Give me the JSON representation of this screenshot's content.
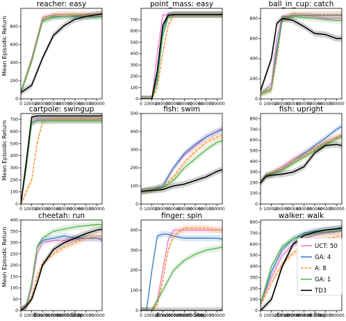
{
  "figure": {
    "ylabel": "Mean Episodic Return",
    "xlabel": "Environment Step",
    "x_tick_labels": [
      "0",
      "100000",
      "200000",
      "300000",
      "400000",
      "500000",
      "600000",
      "700000"
    ],
    "legend": {
      "location": "lower-right of last panel",
      "entries": [
        {
          "label": "UCT: 50",
          "color": "#f07fc3",
          "style": "solid"
        },
        {
          "label": "GA: 4",
          "color": "#3f7fc4",
          "style": "solid"
        },
        {
          "label": "A: 8",
          "color": "#f28e2b",
          "style": "dashed"
        },
        {
          "label": "GA: 1",
          "color": "#59b251",
          "style": "solid"
        },
        {
          "label": "TD3",
          "color": "#000000",
          "style": "solid"
        }
      ]
    }
  },
  "chart_data": [
    {
      "type": "line",
      "title": "reacher: easy",
      "xlim": [
        0,
        750000
      ],
      "ylim": [
        0,
        1000
      ],
      "yticks": [
        "0",
        "200",
        "400",
        "600",
        "800"
      ],
      "ytick_values": [
        0,
        200,
        400,
        600,
        800
      ],
      "x": [
        0,
        100000,
        200000,
        300000,
        400000,
        500000,
        600000,
        700000,
        750000
      ],
      "series": [
        {
          "name": "UCT: 50",
          "values": [
            70,
            450,
            900,
            930,
            930,
            930,
            930,
            930,
            930
          ]
        },
        {
          "name": "GA: 4",
          "values": [
            70,
            420,
            870,
            900,
            910,
            910,
            910,
            910,
            910
          ]
        },
        {
          "name": "A: 8",
          "values": [
            70,
            430,
            880,
            920,
            930,
            930,
            930,
            930,
            930
          ]
        },
        {
          "name": "GA: 1",
          "values": [
            70,
            410,
            860,
            910,
            910,
            920,
            910,
            910,
            910
          ]
        },
        {
          "name": "TD3",
          "values": [
            70,
            150,
            450,
            700,
            810,
            880,
            910,
            930,
            940
          ]
        }
      ]
    },
    {
      "type": "line",
      "title": "point_mass: easy",
      "xlim": [
        0,
        750000
      ],
      "ylim": [
        0,
        800
      ],
      "yticks": [
        "0",
        "100",
        "200",
        "300",
        "400",
        "500",
        "600",
        "700"
      ],
      "ytick_values": [
        0,
        100,
        200,
        300,
        400,
        500,
        600,
        700
      ],
      "x": [
        0,
        100000,
        150000,
        200000,
        250000,
        300000,
        400000,
        500000,
        600000,
        700000,
        750000
      ],
      "series": [
        {
          "name": "UCT: 50",
          "values": [
            0,
            0,
            400,
            740,
            745,
            745,
            745,
            745,
            745,
            745,
            745
          ]
        },
        {
          "name": "GA: 4",
          "values": [
            0,
            0,
            200,
            600,
            740,
            745,
            745,
            745,
            745,
            745,
            745
          ]
        },
        {
          "name": "A: 8",
          "values": [
            0,
            0,
            100,
            400,
            650,
            740,
            745,
            745,
            745,
            745,
            745
          ]
        },
        {
          "name": "GA: 1",
          "values": [
            0,
            0,
            150,
            550,
            720,
            745,
            745,
            745,
            745,
            745,
            745
          ]
        },
        {
          "name": "TD3",
          "values": [
            0,
            0,
            250,
            650,
            740,
            745,
            745,
            745,
            745,
            745,
            745
          ]
        }
      ]
    },
    {
      "type": "line",
      "title": "ball_in_cup: catch",
      "xlim": [
        0,
        750000
      ],
      "ylim": [
        0,
        900
      ],
      "yticks": [
        "0",
        "200",
        "400",
        "600",
        "800"
      ],
      "ytick_values": [
        0,
        200,
        400,
        600,
        800
      ],
      "x": [
        0,
        100000,
        150000,
        200000,
        300000,
        400000,
        500000,
        600000,
        700000,
        750000
      ],
      "series": [
        {
          "name": "UCT: 50",
          "values": [
            50,
            150,
            600,
            820,
            830,
            830,
            820,
            800,
            800,
            800
          ]
        },
        {
          "name": "GA: 4",
          "values": [
            50,
            100,
            500,
            800,
            830,
            830,
            830,
            830,
            830,
            830
          ]
        },
        {
          "name": "A: 8",
          "values": [
            50,
            80,
            400,
            780,
            850,
            840,
            840,
            840,
            840,
            840
          ]
        },
        {
          "name": "GA: 1",
          "values": [
            50,
            100,
            450,
            780,
            820,
            810,
            800,
            790,
            780,
            780
          ]
        },
        {
          "name": "TD3",
          "values": [
            80,
            400,
            750,
            800,
            780,
            720,
            650,
            640,
            600,
            600
          ]
        }
      ]
    },
    {
      "type": "line",
      "title": "cartpole: swingup",
      "xlim": [
        0,
        750000
      ],
      "ylim": [
        0,
        750
      ],
      "yticks": [
        "0",
        "100",
        "200",
        "300",
        "400",
        "500",
        "600",
        "700"
      ],
      "ytick_values": [
        0,
        100,
        200,
        300,
        400,
        500,
        600,
        700
      ],
      "x": [
        0,
        50000,
        100000,
        150000,
        200000,
        300000,
        400000,
        500000,
        600000,
        700000,
        750000
      ],
      "series": [
        {
          "name": "UCT: 50",
          "values": [
            0,
            300,
            680,
            700,
            700,
            700,
            700,
            700,
            700,
            700,
            700
          ]
        },
        {
          "name": "GA: 4",
          "values": [
            0,
            300,
            670,
            690,
            690,
            690,
            690,
            690,
            690,
            690,
            690
          ]
        },
        {
          "name": "A: 8",
          "values": [
            0,
            100,
            200,
            500,
            680,
            700,
            700,
            700,
            700,
            700,
            700
          ]
        },
        {
          "name": "GA: 1",
          "values": [
            0,
            300,
            670,
            690,
            690,
            690,
            690,
            690,
            690,
            690,
            690
          ]
        },
        {
          "name": "TD3",
          "values": [
            0,
            350,
            720,
            730,
            730,
            730,
            730,
            730,
            730,
            730,
            730
          ]
        }
      ]
    },
    {
      "type": "line",
      "title": "fish: swim",
      "xlim": [
        0,
        750000
      ],
      "ylim": [
        0,
        500
      ],
      "yticks": [
        "0",
        "100",
        "200",
        "300",
        "400",
        "500"
      ],
      "ytick_values": [
        0,
        100,
        200,
        300,
        400,
        500
      ],
      "x": [
        0,
        100000,
        200000,
        300000,
        400000,
        500000,
        600000,
        700000,
        750000
      ],
      "series": [
        {
          "name": "UCT: 50",
          "values": [
            70,
            80,
            100,
            200,
            270,
            320,
            370,
            400,
            420
          ]
        },
        {
          "name": "GA: 4",
          "values": [
            70,
            80,
            100,
            200,
            280,
            330,
            370,
            400,
            410
          ]
        },
        {
          "name": "A: 8",
          "values": [
            70,
            80,
            90,
            150,
            230,
            290,
            340,
            370,
            380
          ]
        },
        {
          "name": "GA: 1",
          "values": [
            70,
            80,
            90,
            130,
            200,
            250,
            300,
            340,
            350
          ]
        },
        {
          "name": "TD3",
          "values": [
            70,
            75,
            80,
            100,
            110,
            130,
            150,
            180,
            190
          ]
        }
      ]
    },
    {
      "type": "line",
      "title": "fish: upright",
      "xlim": [
        0,
        750000
      ],
      "ylim": [
        0,
        850
      ],
      "yticks": [
        "0",
        "100",
        "200",
        "300",
        "400",
        "500",
        "600",
        "700",
        "800"
      ],
      "ytick_values": [
        0,
        100,
        200,
        300,
        400,
        500,
        600,
        700,
        800
      ],
      "x": [
        0,
        50000,
        100000,
        200000,
        300000,
        400000,
        500000,
        600000,
        700000,
        750000
      ],
      "series": [
        {
          "name": "UCT: 50",
          "values": [
            200,
            270,
            290,
            350,
            420,
            480,
            530,
            580,
            630,
            650
          ]
        },
        {
          "name": "GA: 4",
          "values": [
            200,
            270,
            280,
            330,
            400,
            470,
            550,
            620,
            700,
            730
          ]
        },
        {
          "name": "A: 8",
          "values": [
            200,
            260,
            290,
            330,
            400,
            450,
            520,
            580,
            620,
            640
          ]
        },
        {
          "name": "GA: 1",
          "values": [
            200,
            260,
            280,
            320,
            380,
            440,
            500,
            560,
            610,
            630
          ]
        },
        {
          "name": "TD3",
          "values": [
            200,
            260,
            270,
            280,
            300,
            350,
            480,
            550,
            560,
            550
          ]
        }
      ]
    },
    {
      "type": "line",
      "title": "cheetah: run",
      "xlim": [
        0,
        750000
      ],
      "ylim": [
        0,
        400
      ],
      "yticks": [
        "0",
        "50",
        "100",
        "150",
        "200",
        "250",
        "300",
        "350",
        "400"
      ],
      "ytick_values": [
        0,
        50,
        100,
        150,
        200,
        250,
        300,
        350,
        400
      ],
      "x": [
        0,
        50000,
        100000,
        150000,
        200000,
        300000,
        400000,
        500000,
        600000,
        700000,
        750000
      ],
      "series": [
        {
          "name": "UCT: 50",
          "values": [
            0,
            20,
            100,
            250,
            300,
            310,
            310,
            315,
            320,
            320,
            320
          ]
        },
        {
          "name": "GA: 4",
          "values": [
            0,
            20,
            120,
            280,
            310,
            320,
            330,
            320,
            320,
            320,
            310
          ]
        },
        {
          "name": "A: 8",
          "values": [
            0,
            15,
            60,
            150,
            210,
            250,
            280,
            300,
            320,
            330,
            330
          ]
        },
        {
          "name": "GA: 1",
          "values": [
            0,
            20,
            120,
            280,
            320,
            350,
            360,
            370,
            375,
            380,
            380
          ]
        },
        {
          "name": "TD3",
          "values": [
            0,
            20,
            50,
            120,
            200,
            270,
            300,
            320,
            340,
            355,
            360
          ]
        }
      ]
    },
    {
      "type": "line",
      "title": "finger: spin",
      "xlim": [
        0,
        750000
      ],
      "ylim": [
        0,
        450
      ],
      "yticks": [
        "0",
        "100",
        "200",
        "300",
        "400"
      ],
      "ytick_values": [
        0,
        100,
        200,
        300,
        400
      ],
      "x": [
        0,
        50000,
        100000,
        150000,
        200000,
        250000,
        300000,
        400000,
        500000,
        600000,
        700000,
        750000
      ],
      "series": [
        {
          "name": "UCT: 50",
          "values": [
            0,
            0,
            0,
            50,
            200,
            350,
            400,
            400,
            400,
            400,
            400,
            400
          ]
        },
        {
          "name": "GA: 4",
          "values": [
            0,
            0,
            200,
            370,
            380,
            380,
            370,
            360,
            360,
            360,
            360,
            355
          ]
        },
        {
          "name": "A: 8",
          "values": [
            0,
            0,
            0,
            30,
            150,
            300,
            370,
            410,
            410,
            410,
            400,
            400
          ]
        },
        {
          "name": "GA: 1",
          "values": [
            0,
            0,
            0,
            50,
            100,
            150,
            200,
            250,
            280,
            300,
            310,
            315
          ]
        },
        {
          "name": "TD3",
          "values": [
            0,
            0,
            0,
            0,
            0,
            0,
            0,
            0,
            0,
            0,
            0,
            2
          ]
        }
      ]
    },
    {
      "type": "line",
      "title": "walker: walk",
      "xlim": [
        0,
        750000
      ],
      "ylim": [
        0,
        820
      ],
      "yticks": [
        "0",
        "100",
        "200",
        "300",
        "400",
        "500",
        "600",
        "700",
        "800"
      ],
      "ytick_values": [
        0,
        100,
        200,
        300,
        400,
        500,
        600,
        700,
        800
      ],
      "x": [
        0,
        100000,
        200000,
        300000,
        400000,
        500000,
        600000,
        700000,
        750000
      ],
      "series": [
        {
          "name": "UCT: 50",
          "values": [
            60,
            300,
            500,
            600,
            650,
            680,
            700,
            710,
            720
          ]
        },
        {
          "name": "GA: 4",
          "values": [
            60,
            350,
            550,
            650,
            700,
            720,
            730,
            740,
            740
          ]
        },
        {
          "name": "A: 8",
          "values": [
            50,
            250,
            420,
            520,
            580,
            620,
            650,
            670,
            680
          ]
        },
        {
          "name": "GA: 1",
          "values": [
            60,
            400,
            580,
            650,
            680,
            700,
            710,
            720,
            730
          ]
        },
        {
          "name": "TD3",
          "values": [
            0,
            100,
            400,
            600,
            680,
            710,
            730,
            740,
            750
          ]
        }
      ]
    }
  ]
}
